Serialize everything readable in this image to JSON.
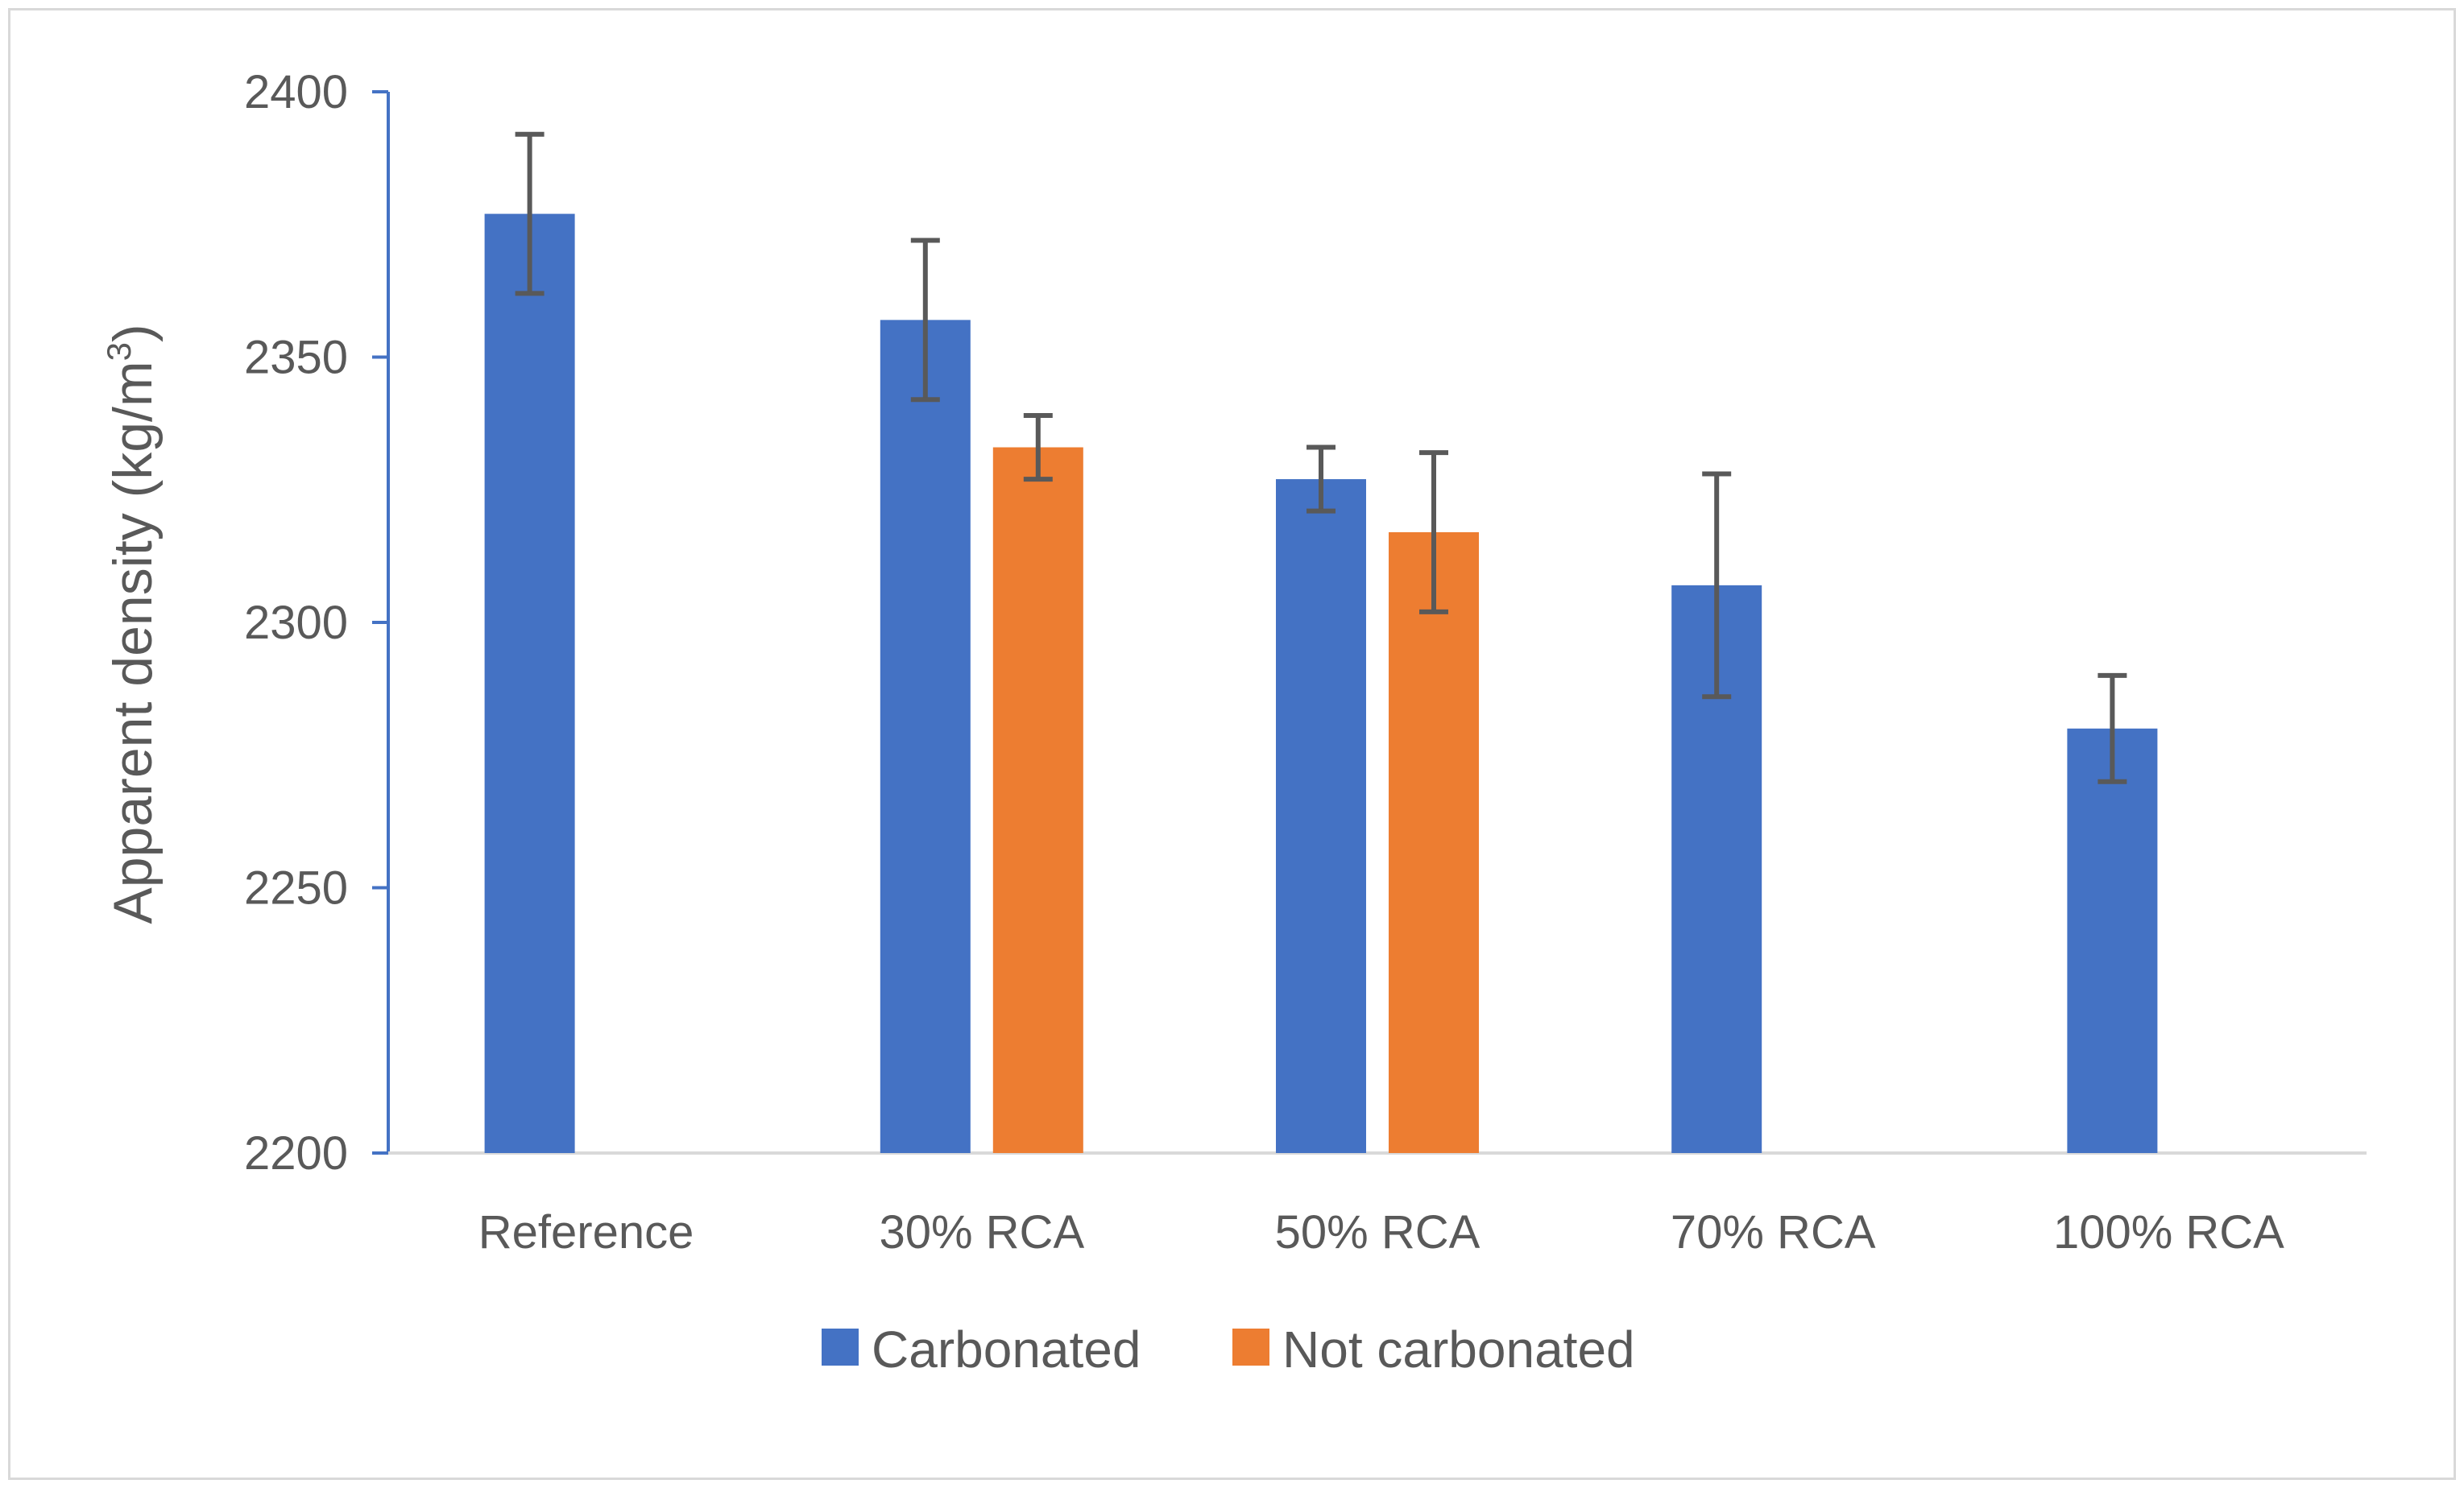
{
  "chart_data": {
    "type": "bar",
    "title": "",
    "xlabel": "",
    "ylabel": "Apparent density (kg/m",
    "ylabel_superscript": "3",
    "ylabel_close": ")",
    "ylim": [
      2200,
      2400
    ],
    "yticks": [
      2200,
      2250,
      2300,
      2350,
      2400
    ],
    "grid": false,
    "legend_position": "bottom",
    "categories": [
      "Reference",
      "30% RCA",
      "50% RCA",
      "70% RCA",
      "100% RCA"
    ],
    "series": [
      {
        "name": "Carbonated",
        "color": "#4472c4",
        "values": [
          2377,
          2357,
          2327,
          2307,
          2280
        ],
        "errors": [
          15,
          15,
          6,
          21,
          10
        ]
      },
      {
        "name": "Not carbonated",
        "color": "#ed7d31",
        "values": [
          null,
          2333,
          2317,
          null,
          null
        ],
        "errors": [
          null,
          6,
          15,
          null,
          null
        ]
      }
    ],
    "axis_color": "#4472c4",
    "baseline_color": "#d9d9d9",
    "errorbar_color": "#595959"
  }
}
